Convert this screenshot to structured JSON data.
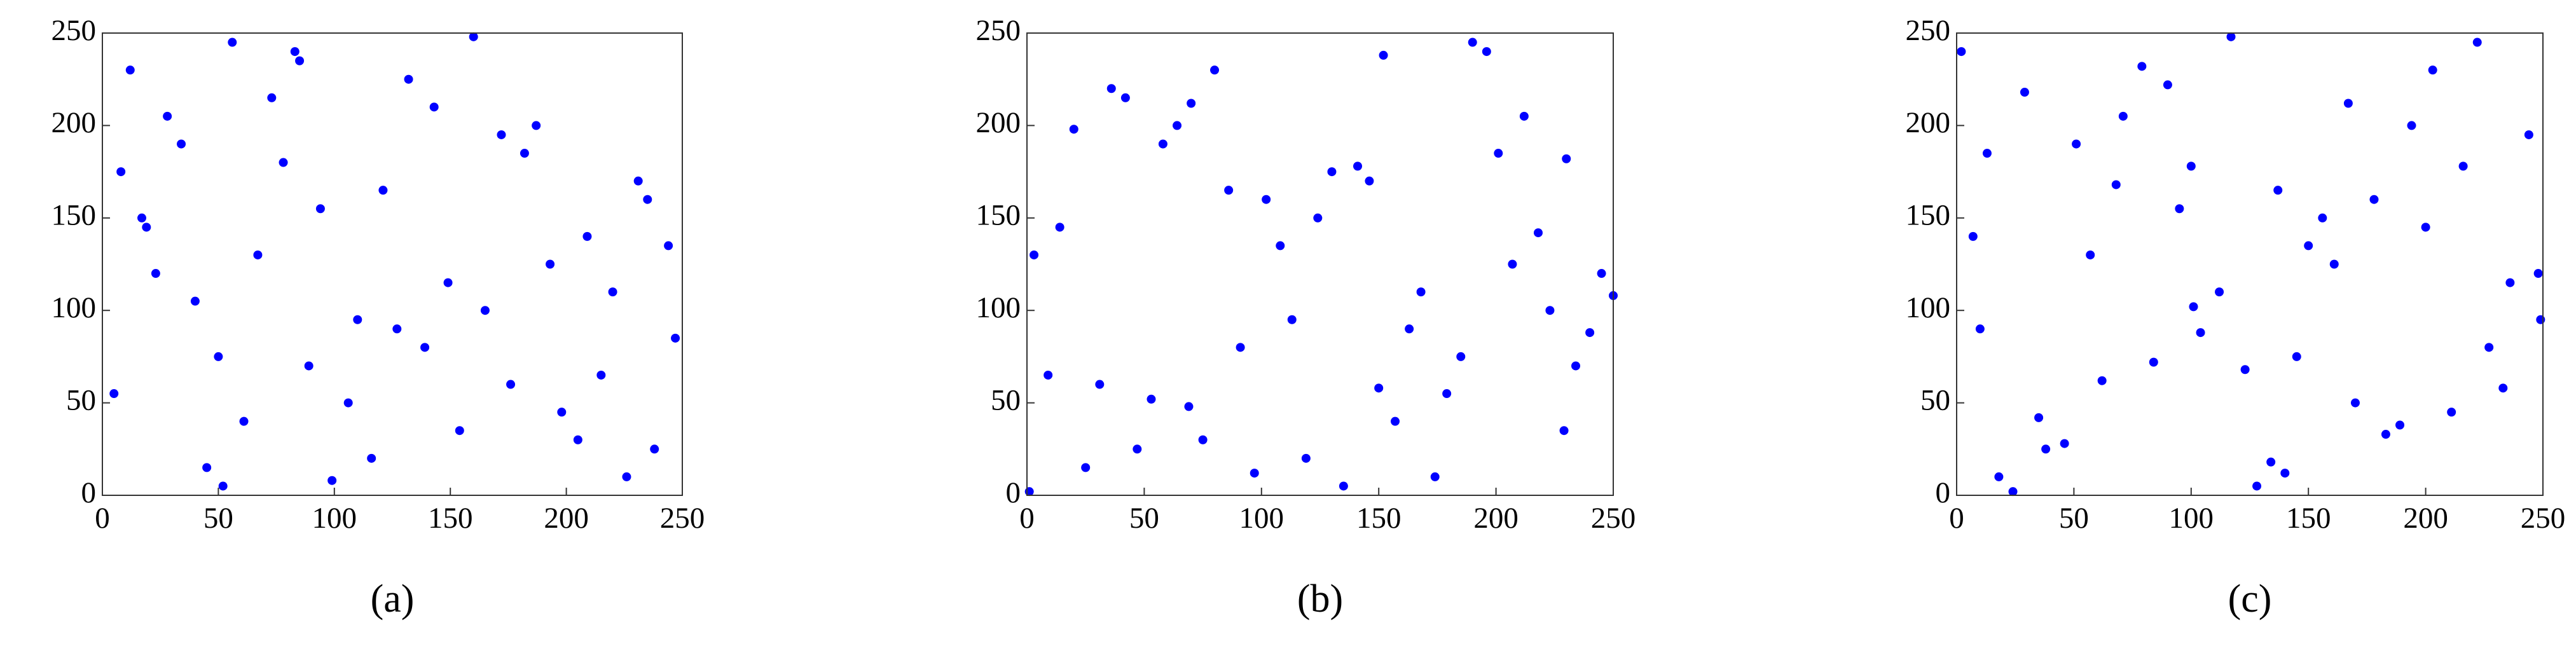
{
  "chart_data": [
    {
      "type": "scatter",
      "caption": "(a)",
      "color": "#0000ff",
      "xlim": [
        0,
        250
      ],
      "ylim": [
        0,
        250
      ],
      "xticks": [
        0,
        50,
        100,
        150,
        200,
        250
      ],
      "yticks": [
        0,
        50,
        100,
        150,
        200,
        250
      ],
      "x": [
        12,
        45,
        78,
        110,
        143,
        176,
        209,
        238,
        23,
        56,
        89,
        121,
        154,
        187,
        220,
        247,
        5,
        34,
        67,
        99,
        132,
        165,
        198,
        231,
        17,
        50,
        83,
        116,
        149,
        182,
        215,
        244,
        28,
        61,
        94,
        127,
        160,
        193,
        226,
        8,
        40,
        73,
        106,
        139,
        172,
        205,
        235,
        19,
        52,
        85
      ],
      "y": [
        230,
        15,
        180,
        95,
        210,
        60,
        140,
        25,
        120,
        245,
        70,
        165,
        35,
        200,
        110,
        85,
        55,
        190,
        130,
        8,
        225,
        100,
        45,
        170,
        150,
        75,
        240,
        20,
        115,
        185,
        65,
        135,
        205,
        40,
        155,
        90,
        248,
        125,
        10,
        175,
        105,
        215,
        50,
        80,
        195,
        30,
        160,
        145,
        5,
        235
      ]
    },
    {
      "type": "scatter",
      "caption": "(b)",
      "color": "#0000ff",
      "xlim": [
        0,
        250
      ],
      "ylim": [
        0,
        250
      ],
      "xticks": [
        0,
        50,
        100,
        150,
        200,
        250
      ],
      "yticks": [
        0,
        50,
        100,
        150,
        200,
        250
      ],
      "x": [
        31,
        64,
        97,
        130,
        163,
        196,
        229,
        3,
        36,
        69,
        102,
        135,
        168,
        201,
        234,
        14,
        47,
        80,
        113,
        146,
        179,
        212,
        245,
        25,
        58,
        91,
        124,
        157,
        190,
        223,
        9,
        42,
        75,
        108,
        141,
        174,
        207,
        240,
        20,
        53,
        86,
        119,
        152,
        185,
        218,
        250,
        1,
        70,
        150,
        230
      ],
      "y": [
        60,
        200,
        12,
        175,
        90,
        240,
        35,
        130,
        220,
        48,
        160,
        5,
        110,
        185,
        70,
        145,
        25,
        230,
        95,
        170,
        55,
        205,
        120,
        15,
        190,
        80,
        150,
        40,
        245,
        100,
        65,
        215,
        30,
        135,
        178,
        10,
        125,
        88,
        198,
        52,
        165,
        20,
        238,
        75,
        142,
        108,
        2,
        212,
        58,
        182
      ]
    },
    {
      "type": "scatter",
      "caption": "(c)",
      "color": "#0000ff",
      "xlim": [
        0,
        250
      ],
      "ylim": [
        0,
        250
      ],
      "xticks": [
        0,
        50,
        100,
        150,
        200,
        250
      ],
      "yticks": [
        0,
        50,
        100,
        150,
        200,
        250
      ],
      "x": [
        7,
        38,
        71,
        104,
        137,
        170,
        203,
        236,
        18,
        51,
        84,
        117,
        150,
        183,
        216,
        249,
        29,
        62,
        95,
        128,
        161,
        194,
        227,
        2,
        35,
        68,
        101,
        134,
        167,
        200,
        233,
        13,
        46,
        79,
        112,
        145,
        178,
        211,
        244,
        24,
        57,
        90,
        123,
        156,
        189,
        222,
        10,
        100,
        140,
        248
      ],
      "y": [
        140,
        25,
        205,
        88,
        165,
        50,
        230,
        115,
        10,
        190,
        72,
        248,
        135,
        33,
        178,
        95,
        218,
        62,
        155,
        5,
        125,
        200,
        80,
        240,
        42,
        168,
        102,
        18,
        212,
        145,
        58,
        185,
        28,
        232,
        110,
        75,
        160,
        45,
        195,
        2,
        130,
        222,
        68,
        150,
        38,
        245,
        90,
        178,
        12,
        120
      ]
    }
  ]
}
